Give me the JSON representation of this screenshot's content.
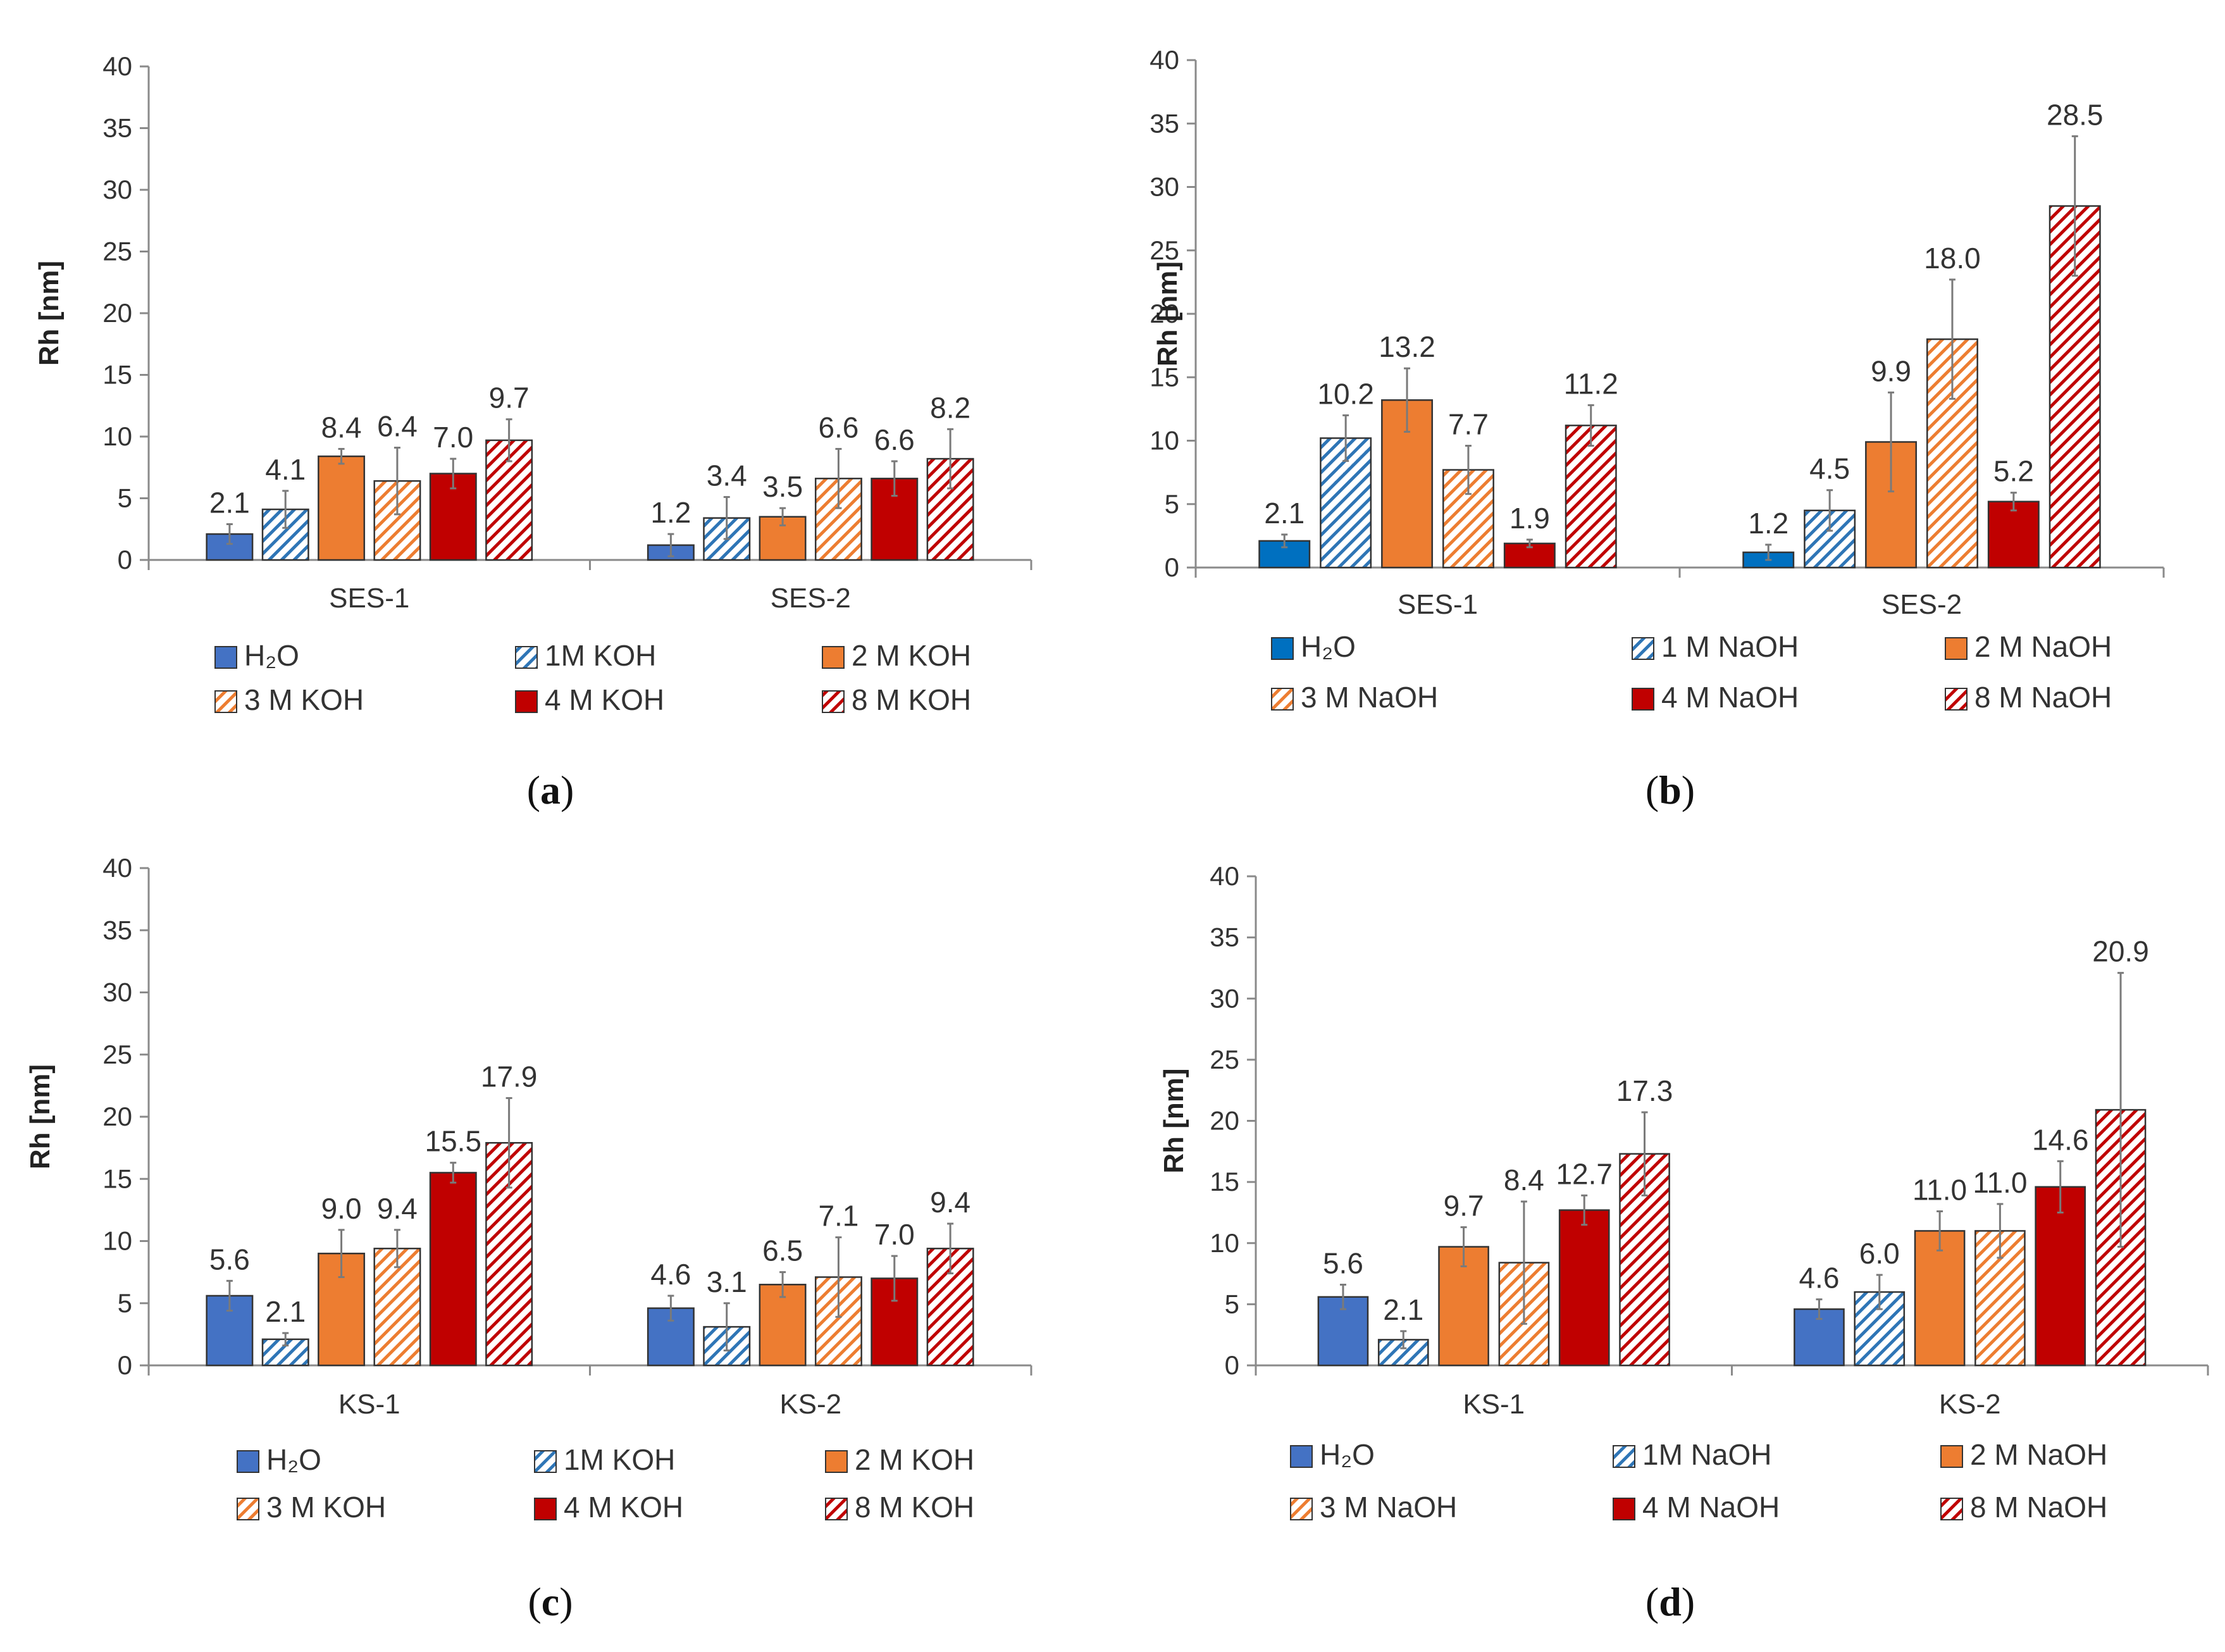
{
  "figure_title": "",
  "chart_data": [
    {
      "type": "bar",
      "panel": "a",
      "caption": "(a)",
      "caption_letter": "a",
      "ylabel": "Rh [nm]",
      "xlabel": "",
      "ylim": [
        0,
        40
      ],
      "yticks": [
        "0",
        "5",
        "10",
        "15",
        "20",
        "25",
        "30",
        "35",
        "40"
      ],
      "grid": false,
      "legend_position": "bottom",
      "categories": [
        "SES-1",
        "SES-2"
      ],
      "series": [
        {
          "name": "H₂O",
          "style": "solid",
          "color": "#4472C4",
          "values": [
            2.1,
            1.2
          ],
          "errors": [
            0.8,
            0.9
          ],
          "labels": [
            "2.1",
            "1.2"
          ]
        },
        {
          "name": "1M KOH",
          "style": "hatch",
          "color": "#2E75B6",
          "values": [
            4.1,
            3.4
          ],
          "errors": [
            1.5,
            1.7
          ],
          "labels": [
            "4.1",
            "3.4"
          ]
        },
        {
          "name": "2 M KOH",
          "style": "solid",
          "color": "#ED7D31",
          "values": [
            8.4,
            3.5
          ],
          "errors": [
            0.6,
            0.7
          ],
          "labels": [
            "8.4",
            "3.5"
          ]
        },
        {
          "name": "3 M KOH",
          "style": "hatch",
          "color": "#ED7D31",
          "values": [
            6.4,
            6.6
          ],
          "errors": [
            2.7,
            2.4
          ],
          "labels": [
            "6.4",
            "6.6"
          ]
        },
        {
          "name": "4 M KOH",
          "style": "solid",
          "color": "#C00000",
          "values": [
            7.0,
            6.6
          ],
          "errors": [
            1.2,
            1.4
          ],
          "labels": [
            "7.0",
            "6.6"
          ]
        },
        {
          "name": "8 M KOH",
          "style": "hatch",
          "color": "#C00000",
          "values": [
            9.7,
            8.2
          ],
          "errors": [
            1.7,
            2.4
          ],
          "labels": [
            "9.7",
            "8.2"
          ]
        }
      ]
    },
    {
      "type": "bar",
      "panel": "b",
      "caption": "(b)",
      "caption_letter": "b",
      "ylabel": "Rh [nm]",
      "xlabel": "",
      "ylim": [
        0,
        40
      ],
      "yticks": [
        "0",
        "5",
        "10",
        "15",
        "20",
        "25",
        "30",
        "35",
        "40"
      ],
      "grid": false,
      "legend_position": "bottom",
      "categories": [
        "SES-1",
        "SES-2"
      ],
      "series": [
        {
          "name": "H₂O",
          "style": "solid",
          "color": "#0070C0",
          "values": [
            2.1,
            1.2
          ],
          "errors": [
            0.5,
            0.6
          ],
          "labels": [
            "2.1",
            "1.2"
          ]
        },
        {
          "name": "1 M NaOH",
          "style": "hatch",
          "color": "#2E75B6",
          "values": [
            10.2,
            4.5
          ],
          "errors": [
            1.8,
            1.6
          ],
          "labels": [
            "10.2",
            "4.5"
          ]
        },
        {
          "name": "2 M NaOH",
          "style": "solid",
          "color": "#ED7D31",
          "values": [
            13.2,
            9.9
          ],
          "errors": [
            2.5,
            3.9
          ],
          "labels": [
            "13.2",
            "9.9"
          ]
        },
        {
          "name": "3 M NaOH",
          "style": "hatch",
          "color": "#ED7D31",
          "values": [
            7.7,
            18.0
          ],
          "errors": [
            1.9,
            4.7
          ],
          "labels": [
            "7.7",
            "18.0"
          ]
        },
        {
          "name": "4 M NaOH",
          "style": "solid",
          "color": "#C00000",
          "values": [
            1.9,
            5.2
          ],
          "errors": [
            0.3,
            0.7
          ],
          "labels": [
            "1.9",
            "5.2"
          ]
        },
        {
          "name": "8 M NaOH",
          "style": "hatch",
          "color": "#C00000",
          "values": [
            11.2,
            28.5
          ],
          "errors": [
            1.6,
            5.5
          ],
          "labels": [
            "11.2",
            "28.5"
          ]
        }
      ]
    },
    {
      "type": "bar",
      "panel": "c",
      "caption": "(c)",
      "caption_letter": "c",
      "ylabel": "Rh [nm]",
      "xlabel": "",
      "ylim": [
        0,
        40
      ],
      "yticks": [
        "0",
        "5",
        "10",
        "15",
        "20",
        "25",
        "30",
        "35",
        "40"
      ],
      "grid": false,
      "legend_position": "bottom",
      "categories": [
        "KS-1",
        "KS-2"
      ],
      "series": [
        {
          "name": "H₂O",
          "style": "solid",
          "color": "#4472C4",
          "values": [
            5.6,
            4.6
          ],
          "errors": [
            1.2,
            1.0
          ],
          "labels": [
            "5.6",
            "4.6"
          ]
        },
        {
          "name": "1M KOH",
          "style": "hatch",
          "color": "#2E75B6",
          "values": [
            2.1,
            3.1
          ],
          "errors": [
            0.5,
            1.9
          ],
          "labels": [
            "2.1",
            "3.1"
          ]
        },
        {
          "name": "2 M KOH",
          "style": "solid",
          "color": "#ED7D31",
          "values": [
            9.0,
            6.5
          ],
          "errors": [
            1.9,
            1.0
          ],
          "labels": [
            "9.0",
            "6.5"
          ]
        },
        {
          "name": "3 M KOH",
          "style": "hatch",
          "color": "#ED7D31",
          "values": [
            9.4,
            7.1
          ],
          "errors": [
            1.5,
            3.2
          ],
          "labels": [
            "9.4",
            "7.1"
          ]
        },
        {
          "name": "4 M KOH",
          "style": "solid",
          "color": "#C00000",
          "values": [
            15.5,
            7.0
          ],
          "errors": [
            0.8,
            1.8
          ],
          "labels": [
            "15.5",
            "7.0"
          ]
        },
        {
          "name": "8 M KOH",
          "style": "hatch",
          "color": "#C00000",
          "values": [
            17.9,
            9.4
          ],
          "errors": [
            3.6,
            2.0
          ],
          "labels": [
            "17.9",
            "9.4"
          ]
        }
      ]
    },
    {
      "type": "bar",
      "panel": "d",
      "caption": "(d)",
      "caption_letter": "d",
      "ylabel": "Rh [nm]",
      "xlabel": "",
      "ylim": [
        0,
        40
      ],
      "yticks": [
        "0",
        "5",
        "10",
        "15",
        "20",
        "25",
        "30",
        "35",
        "40"
      ],
      "grid": false,
      "legend_position": "bottom",
      "categories": [
        "KS-1",
        "KS-2"
      ],
      "series": [
        {
          "name": "H₂O",
          "style": "solid",
          "color": "#4472C4",
          "values": [
            5.6,
            4.6
          ],
          "errors": [
            1.0,
            0.8
          ],
          "labels": [
            "5.6",
            "4.6"
          ]
        },
        {
          "name": "1M NaOH",
          "style": "hatch",
          "color": "#2E75B6",
          "values": [
            2.1,
            6.0
          ],
          "errors": [
            0.7,
            1.4
          ],
          "labels": [
            "2.1",
            "6.0"
          ]
        },
        {
          "name": "2 M NaOH",
          "style": "solid",
          "color": "#ED7D31",
          "values": [
            9.7,
            11.0
          ],
          "errors": [
            1.6,
            1.6
          ],
          "labels": [
            "9.7",
            "11.0"
          ]
        },
        {
          "name": "3 M NaOH",
          "style": "hatch",
          "color": "#ED7D31",
          "values": [
            8.4,
            11.0
          ],
          "errors": [
            5.0,
            2.2
          ],
          "labels": [
            "8.4",
            "11.0"
          ]
        },
        {
          "name": "4 M NaOH",
          "style": "solid",
          "color": "#C00000",
          "values": [
            12.7,
            14.6
          ],
          "errors": [
            1.2,
            2.1
          ],
          "labels": [
            "12.7",
            "14.6"
          ]
        },
        {
          "name": "8 M NaOH",
          "style": "hatch",
          "color": "#C00000",
          "values": [
            17.3,
            20.9
          ],
          "errors": [
            3.4,
            11.2
          ],
          "labels": [
            "17.3",
            "20.9"
          ]
        }
      ]
    }
  ]
}
